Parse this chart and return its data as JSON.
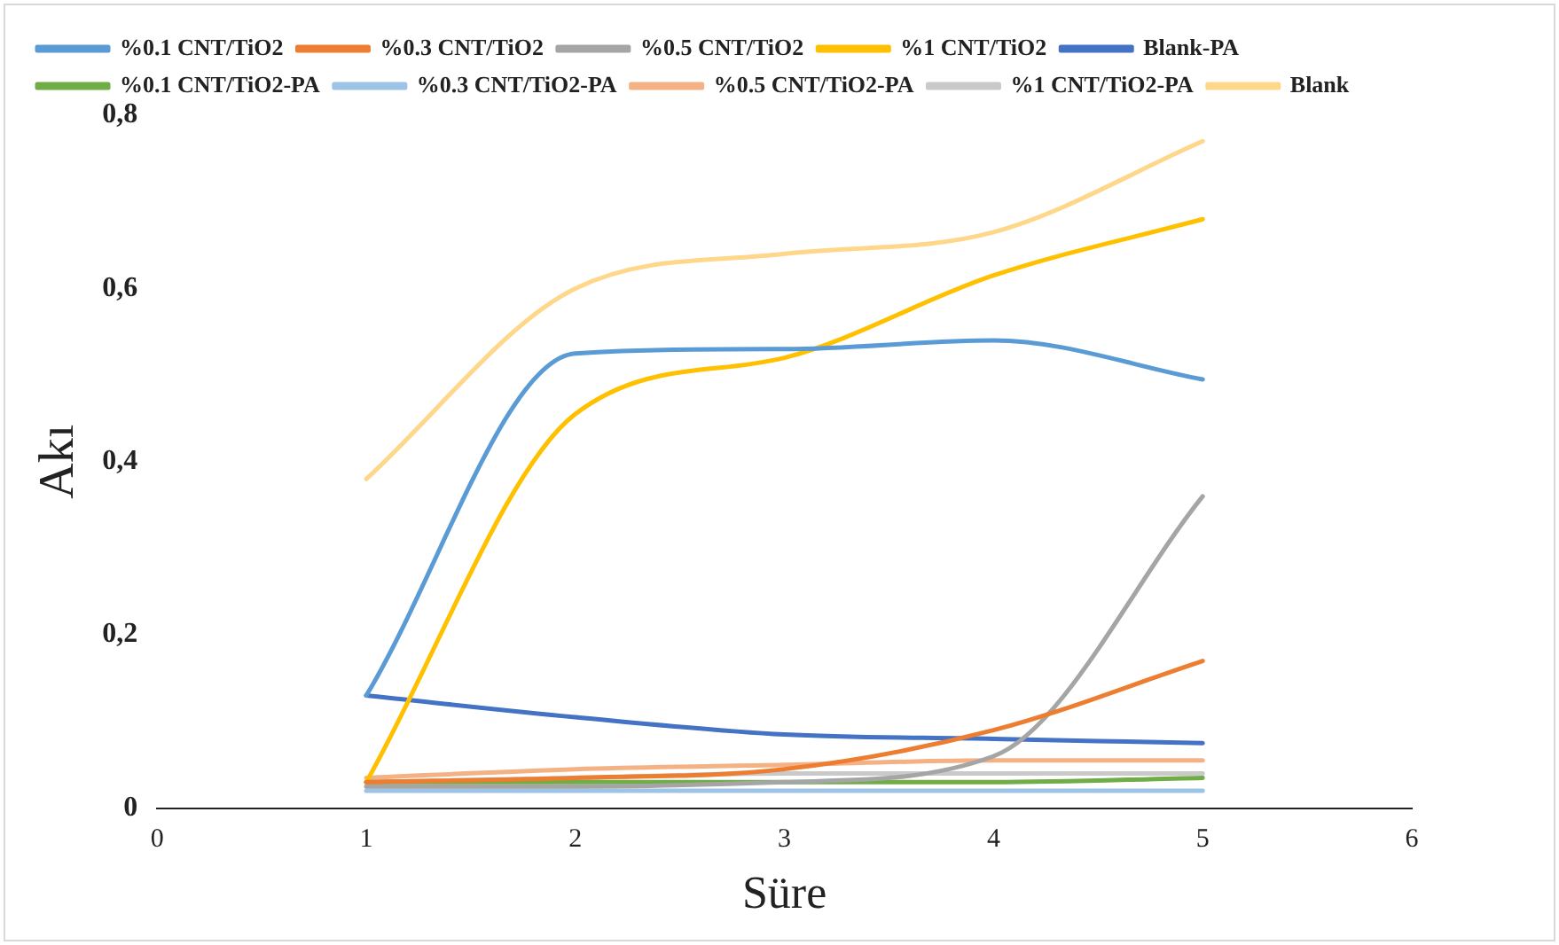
{
  "chart_data": {
    "type": "line",
    "xlabel": "Süre",
    "ylabel": "Akı",
    "x": [
      1,
      2,
      3,
      4,
      5
    ],
    "xlim": [
      0,
      6
    ],
    "xticks": [
      0,
      1,
      2,
      3,
      4,
      5,
      6
    ],
    "ylim": [
      0,
      0.8
    ],
    "yticks": [
      {
        "value": 0,
        "label": "0"
      },
      {
        "value": 0.2,
        "label": "0,2"
      },
      {
        "value": 0.4,
        "label": "0,4"
      },
      {
        "value": 0.6,
        "label": "0,6"
      },
      {
        "value": 0.8,
        "label": "0,8"
      }
    ],
    "grid": false,
    "legend": "top",
    "marker": "none",
    "line_style": "solid",
    "series": [
      {
        "name": "%0.1 CNT/TiO2",
        "color": "#5b9bd5",
        "values": [
          0.13,
          0.525,
          0.53,
          0.54,
          0.495
        ]
      },
      {
        "name": "%0.3 CNT/TiO2",
        "color": "#ed7d31",
        "values": [
          0.03,
          0.035,
          0.045,
          0.09,
          0.17
        ]
      },
      {
        "name": "%0.5 CNT/TiO2",
        "color": "#a5a5a5",
        "values": [
          0.025,
          0.025,
          0.03,
          0.06,
          0.36
        ]
      },
      {
        "name": "%1 CNT/TiO2",
        "color": "#ffc000",
        "values": [
          0.03,
          0.455,
          0.52,
          0.615,
          0.68
        ]
      },
      {
        "name": "Blank-PA",
        "color": "#4472c4",
        "values": [
          0.13,
          0.105,
          0.085,
          0.08,
          0.075
        ]
      },
      {
        "name": "%0.1 CNT/TiO2-PA",
        "color": "#70ad47",
        "values": [
          0.03,
          0.03,
          0.03,
          0.03,
          0.035
        ]
      },
      {
        "name": "%0.3 CNT/TiO2-PA",
        "color": "#9dc3e6",
        "values": [
          0.02,
          0.02,
          0.02,
          0.02,
          0.02
        ]
      },
      {
        "name": "%0.5 CNT/TiO2-PA",
        "color": "#f4b183",
        "values": [
          0.035,
          0.045,
          0.05,
          0.055,
          0.055
        ]
      },
      {
        "name": "%1 CNT/TiO2-PA",
        "color": "#c9c9c9",
        "values": [
          0.03,
          0.035,
          0.04,
          0.04,
          0.04
        ]
      },
      {
        "name": "Blank",
        "color": "#ffd78a",
        "values": [
          0.38,
          0.6,
          0.64,
          0.665,
          0.77
        ]
      }
    ]
  }
}
